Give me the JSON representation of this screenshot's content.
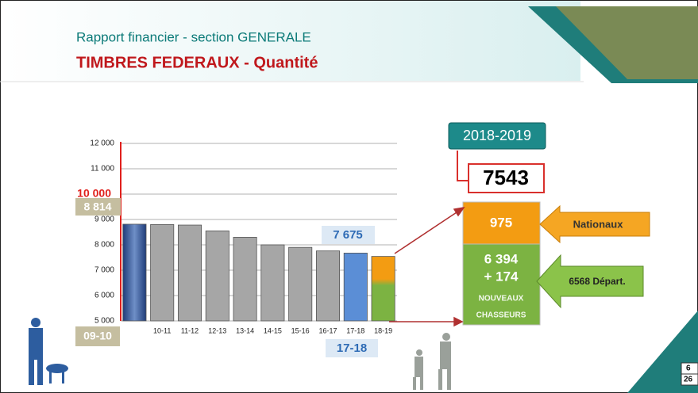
{
  "header": {
    "subtitle": "Rapport financier - section GENERALE",
    "title": "TIMBRES FEDERAUX - Quantité"
  },
  "chart_data": {
    "type": "bar",
    "categories": [
      "09-10",
      "10-11",
      "11-12",
      "12-13",
      "13-14",
      "14-15",
      "15-16",
      "16-17",
      "17-18",
      "18-19"
    ],
    "values": [
      8814,
      8800,
      8780,
      8550,
      8300,
      8000,
      7900,
      7760,
      7675,
      7543
    ],
    "value_labels": [
      "8 814",
      null,
      null,
      null,
      null,
      null,
      null,
      null,
      "7 675",
      null
    ],
    "colors": [
      "#2a4f8f",
      "#a6a6a6",
      "#a6a6a6",
      "#a6a6a6",
      "#a6a6a6",
      "#a6a6a6",
      "#a6a6a6",
      "#a6a6a6",
      "#5b8ed6",
      "#7cb342"
    ],
    "ylim": [
      5000,
      12000
    ],
    "yticks": [
      {
        "value": 5000,
        "label": "5 000"
      },
      {
        "value": 6000,
        "label": "6 000"
      },
      {
        "value": 7000,
        "label": "7 000"
      },
      {
        "value": 8000,
        "label": "8 000"
      },
      {
        "value": 9000,
        "label": "9 000"
      },
      {
        "value": 10000,
        "label": "10 000",
        "color": "#e0201c"
      },
      {
        "value": 11000,
        "label": "11 000"
      },
      {
        "value": 12000,
        "label": "12 000"
      }
    ],
    "grid": true
  },
  "panel": {
    "season": "2018-2019",
    "total": "7543",
    "national": "975",
    "national_label": "Nationaux",
    "departmental": "6 394",
    "new": "+ 174",
    "new_label_1": "NOUVEAUX",
    "new_label_2": "CHASSEURS",
    "departmental_label": "6568 Départ."
  },
  "corner": [
    "6",
    "26"
  ]
}
